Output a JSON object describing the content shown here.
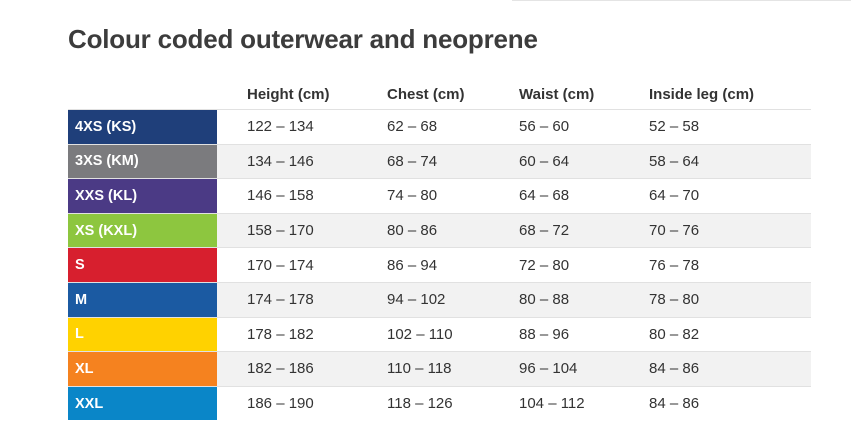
{
  "title": "Colour coded outerwear and neoprene",
  "columns": [
    "Height (cm)",
    "Chest (cm)",
    "Waist (cm)",
    "Inside leg (cm)"
  ],
  "rows": [
    {
      "size": "4XS (KS)",
      "color": "#1f3f7a",
      "height": "122 – 134",
      "chest": "62 – 68",
      "waist": "56 – 60",
      "inside_leg": "52 – 58"
    },
    {
      "size": "3XS (KM)",
      "color": "#7b7b7e",
      "height": "134 – 146",
      "chest": "68 – 74",
      "waist": "60 – 64",
      "inside_leg": "58 – 64"
    },
    {
      "size": "XXS (KL)",
      "color": "#4b3a85",
      "height": "146 – 158",
      "chest": "74 – 80",
      "waist": "64 – 68",
      "inside_leg": "64 – 70"
    },
    {
      "size": "XS (KXL)",
      "color": "#8dc63f",
      "height": "158 – 170",
      "chest": "80 – 86",
      "waist": "68 – 72",
      "inside_leg": "70 – 76"
    },
    {
      "size": "S",
      "color": "#d71f2e",
      "height": "170 – 174",
      "chest": "86 – 94",
      "waist": "72 – 80",
      "inside_leg": "76 – 78"
    },
    {
      "size": "M",
      "color": "#1b5aa2",
      "height": "174 – 178",
      "chest": "94 – 102",
      "waist": "80 – 88",
      "inside_leg": "78 – 80"
    },
    {
      "size": "L",
      "color": "#ffd200",
      "height": "178 – 182",
      "chest": "102 – 110",
      "waist": "88 – 96",
      "inside_leg": "80 – 82"
    },
    {
      "size": "XL",
      "color": "#f5821f",
      "height": "182 – 186",
      "chest": "110 – 118",
      "waist": "96 – 104",
      "inside_leg": "84 – 86"
    },
    {
      "size": "XXL",
      "color": "#0a86c8",
      "height": "186 – 190",
      "chest": "118 – 126",
      "waist": "104 – 112",
      "inside_leg": "84 – 86"
    }
  ]
}
